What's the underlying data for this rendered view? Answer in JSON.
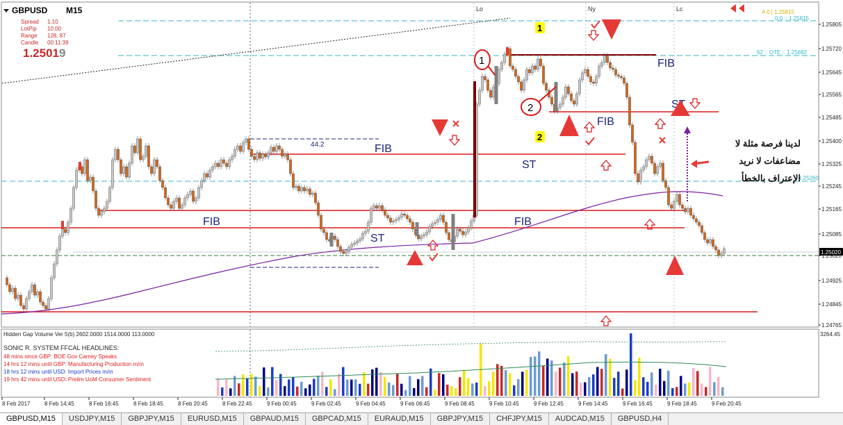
{
  "symbol": "GBPUSD",
  "timeframe": "M15",
  "info": {
    "spread_label": "Spread",
    "spread": "1.10",
    "lotpip_label": "LotPip",
    "lotpip": "10.00",
    "range_label": "Range",
    "range": "128, 87",
    "candle_label": "Candle",
    "candle": "00:11:39",
    "price_main": "1.2501",
    "price_last": "9"
  },
  "session_labels": [
    "Lo",
    "Ny",
    "Lc"
  ],
  "price_axis": [
    "1.25805",
    "1.25720",
    "1.25645",
    "1.25565",
    "1.25485",
    "1.25400",
    "1.25325",
    "1.25245",
    "1.25165",
    "1.25085",
    "1.25020",
    "1.24925",
    "1.24845",
    "1.24765"
  ],
  "current_price": "1.25020",
  "level_260": "1.25260",
  "fib_labels": {
    "top": "A 0 | 1.25815",
    "zero": "0.0 :: 1.25815",
    "ote": "62 :: OTE :: 1.25692",
    "dash_value": "44.2"
  },
  "chart_annotations": {
    "fib": "FIB",
    "st": "ST",
    "num1": "1",
    "num2": "2",
    "arabic_line1": "لدينا فرصة مثلة لا",
    "arabic_line2": "مضاعفات لا نريد",
    "arabic_line3": "الإعتراف بالخطأ"
  },
  "indicator": {
    "title": "Hidden Gap Volume Ver 5(b) 2602.0000 1514.0000 113.0000",
    "max_value": "3264.45",
    "headlines_title": "SONIC R. SYSTEM  FFCAL HEADLINES:",
    "headlines": [
      {
        "text": "48 mins since GBP: BOE Gov Carney Speaks",
        "color": "#e02020"
      },
      {
        "text": "14 hrs 12 mins until GBP: Manufacturing Production m/m",
        "color": "#e02020"
      },
      {
        "text": "18 hrs 12 mins until USD: Import Prices m/m",
        "color": "#1a3cc8"
      },
      {
        "text": "19 hrs 42 mins until USD: Prelim UoM Consumer Sentiment",
        "color": "#e02020"
      }
    ]
  },
  "time_axis": [
    "8 Feb 2017",
    "8 Feb 14:45",
    "8 Feb 16:45",
    "8 Feb 18:45",
    "8 Feb 20:45",
    "8 Feb 22:45",
    "9 Feb 00:45",
    "9 Feb 02:45",
    "9 Feb 04:45",
    "9 Feb 06:45",
    "9 Feb 08:45",
    "9 Feb 10:45",
    "9 Feb 12:45",
    "9 Feb 14:45",
    "9 Feb 16:45",
    "9 Feb 18:45",
    "9 Feb 20:45"
  ],
  "tabs": [
    "GBPUSD,M15",
    "USDJPY,M15",
    "GBPJPY,M15",
    "EURUSD,M15",
    "GBPAUD,M15",
    "GBPCAD,M15",
    "EURAUD,M15",
    "GBPJPY,M15",
    "CHFJPY,M15",
    "AUDCAD,M15",
    "GBPUSD,H4"
  ],
  "colors": {
    "bull": "#c8c8c8",
    "bear": "#d2691e",
    "support": "#d81818",
    "fib_blue": "#1a237e",
    "ma": "#7b1fa2"
  }
}
